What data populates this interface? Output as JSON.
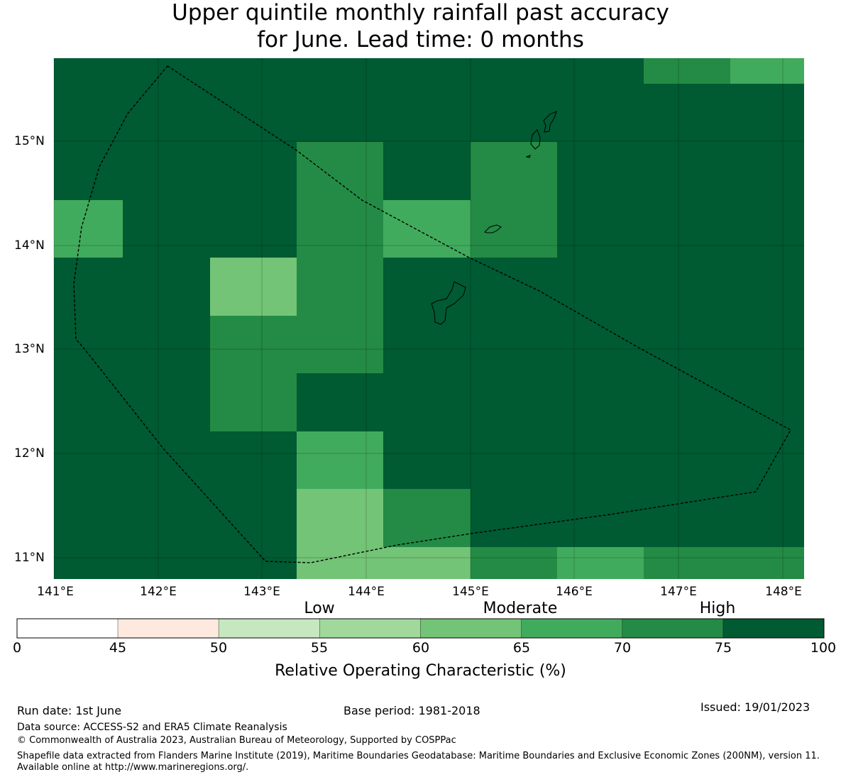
{
  "title": {
    "line1": "Upper quintile monthly rainfall past accuracy",
    "line2": "for June. Lead time: 0 months"
  },
  "map": {
    "lat_labels": [
      "15°N",
      "14°N",
      "13°N",
      "12°N",
      "11°N"
    ],
    "lon_labels": [
      "141°E",
      "142°E",
      "143°E",
      "144°E",
      "145°E",
      "146°E",
      "147°E",
      "148°E"
    ],
    "grid_values": [
      [
        80,
        80,
        80,
        80,
        80,
        80,
        80,
        72,
        67
      ],
      [
        80,
        80,
        80,
        72,
        80,
        72,
        80,
        80,
        80
      ],
      [
        67,
        80,
        80,
        72,
        67,
        72,
        80,
        80,
        80
      ],
      [
        80,
        80,
        62,
        72,
        80,
        80,
        80,
        80,
        80
      ],
      [
        80,
        80,
        72,
        72,
        80,
        80,
        80,
        80,
        80
      ],
      [
        80,
        80,
        72,
        80,
        80,
        80,
        80,
        80,
        80
      ],
      [
        80,
        80,
        80,
        67,
        80,
        80,
        80,
        80,
        80
      ],
      [
        80,
        80,
        80,
        62,
        72,
        80,
        80,
        80,
        80
      ],
      [
        80,
        80,
        80,
        62,
        62,
        72,
        67,
        72,
        72
      ]
    ]
  },
  "colorbar": {
    "categories": [
      "Low",
      "Moderate",
      "High"
    ],
    "tick_labels": [
      "0",
      "45",
      "50",
      "55",
      "60",
      "65",
      "70",
      "75",
      "100"
    ],
    "colors": [
      "#ffffff",
      "#fee9df",
      "#c6e8c0",
      "#a0d99b",
      "#73c476",
      "#41ab5d",
      "#238b45",
      "#005a32"
    ],
    "label": "Relative Operating Characteristic (%)"
  },
  "footer": {
    "run_date": "Run date: 1st June",
    "base_period": "Base period: 1981-2018",
    "issued": "Issued: 19/01/2023",
    "data_source": "Data source: ACCESS-S2 and ERA5 Climate Reanalysis",
    "copyright": "© Commonwealth of Australia 2023, Australian Bureau of Meteorology, Supported by COSPPac",
    "shapefile_note": "Shapefile data extracted from Flanders Marine Institute (2019), Maritime Boundaries Geodatabase: Maritime Boundaries and Exclusive Economic Zones (200NM), version 11. Available online at http://www.marineregions.org/."
  }
}
